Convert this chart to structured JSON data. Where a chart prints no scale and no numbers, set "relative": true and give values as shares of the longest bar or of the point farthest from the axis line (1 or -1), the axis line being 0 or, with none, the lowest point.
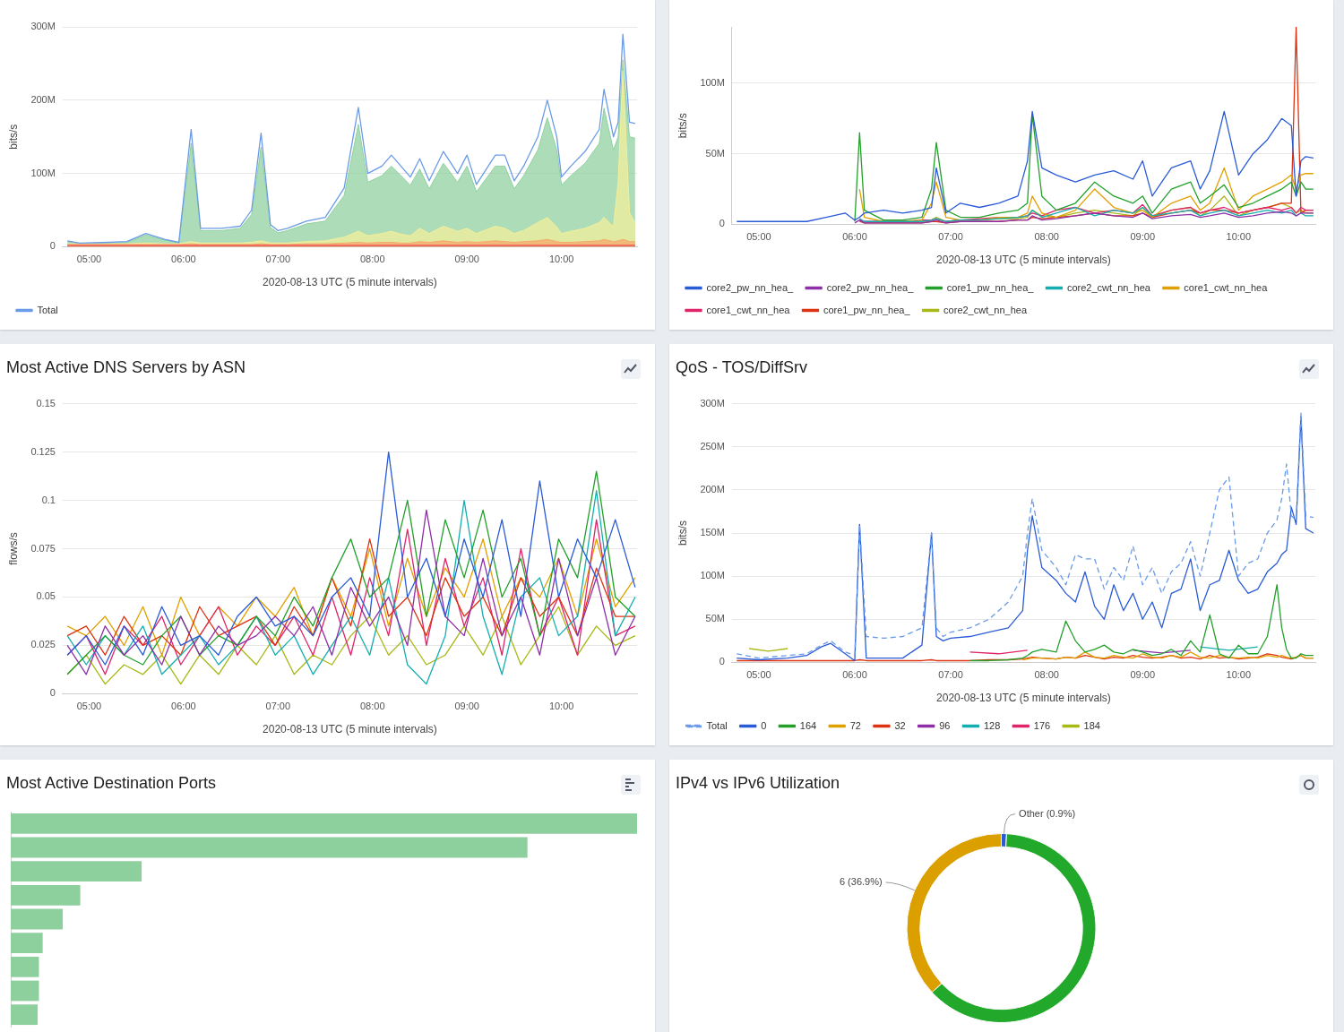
{
  "chart_data": [
    {
      "type": "area",
      "ylabel": "bits/s",
      "xlabel": "2020-08-13 UTC (5 minute intervals)",
      "legend": "bottom",
      "grid": "y",
      "marker": "none",
      "xlim": [
        4.72,
        10.8
      ],
      "xticks": [
        {
          "value": 5,
          "label": "05:00"
        },
        {
          "value": 6,
          "label": "06:00"
        },
        {
          "value": 7,
          "label": "07:00"
        },
        {
          "value": 8,
          "label": "08:00"
        },
        {
          "value": 9,
          "label": "09:00"
        },
        {
          "value": 10,
          "label": "10:00"
        }
      ],
      "ylim": [
        0,
        300
      ],
      "yticks": [
        0,
        {
          "value": 100,
          "label": "100M"
        },
        {
          "value": 200,
          "label": "200M"
        },
        {
          "value": 300,
          "label": "300M"
        }
      ],
      "x": [
        4.77,
        4.9,
        5.2,
        5.4,
        5.6,
        5.8,
        5.95,
        6.08,
        6.18,
        6.4,
        6.6,
        6.72,
        6.82,
        6.92,
        7.0,
        7.1,
        7.3,
        7.5,
        7.7,
        7.85,
        7.95,
        8.1,
        8.2,
        8.3,
        8.4,
        8.5,
        8.6,
        8.75,
        8.9,
        9.0,
        9.1,
        9.3,
        9.4,
        9.5,
        9.6,
        9.75,
        9.85,
        9.95,
        10.0,
        10.1,
        10.25,
        10.4,
        10.45,
        10.55,
        10.6,
        10.65,
        10.72,
        10.78
      ],
      "series": [
        {
          "name": "Total",
          "type": "line",
          "color": "#6a9be8",
          "values": [
            8,
            5,
            6,
            7,
            18,
            10,
            6,
            160,
            25,
            25,
            28,
            50,
            155,
            30,
            22,
            25,
            35,
            40,
            80,
            190,
            100,
            110,
            125,
            110,
            95,
            120,
            90,
            130,
            100,
            125,
            85,
            125,
            125,
            90,
            110,
            150,
            200,
            150,
            95,
            110,
            130,
            160,
            215,
            150,
            170,
            290,
            170,
            168
          ]
        },
        {
          "color": "#ef5a5a",
          "values": [
            2,
            2,
            2,
            2,
            2,
            2,
            2,
            2,
            2,
            2,
            2,
            2,
            2,
            2,
            2,
            2,
            2,
            2,
            2,
            2,
            2,
            2,
            2,
            2,
            2,
            2,
            2,
            2,
            2,
            2,
            2,
            2,
            2,
            2,
            2,
            2,
            2,
            2,
            2,
            2,
            2,
            2,
            2,
            2,
            2,
            2,
            2,
            2
          ]
        },
        {
          "color": "#f7a86a",
          "values": [
            3,
            3,
            3,
            3,
            3,
            3,
            3,
            4,
            3,
            3,
            3,
            3,
            4,
            3,
            3,
            3,
            4,
            4,
            5,
            6,
            5,
            6,
            6,
            5,
            5,
            7,
            6,
            8,
            6,
            7,
            6,
            8,
            7,
            6,
            7,
            8,
            10,
            7,
            6,
            6,
            7,
            8,
            10,
            7,
            8,
            10,
            7,
            7
          ]
        },
        {
          "color": "#f4ef9a",
          "values": [
            4,
            4,
            4,
            4,
            5,
            4,
            4,
            7,
            5,
            5,
            5,
            6,
            8,
            5,
            5,
            5,
            7,
            8,
            13,
            21,
            15,
            18,
            21,
            17,
            15,
            25,
            18,
            28,
            21,
            25,
            18,
            28,
            25,
            18,
            22,
            33,
            40,
            27,
            18,
            21,
            25,
            33,
            40,
            27,
            88,
            240,
            47,
            32
          ]
        },
        {
          "color": "#8fd19e",
          "values": [
            7,
            4,
            5,
            6,
            16,
            9,
            5,
            141,
            22,
            22,
            25,
            44,
            136,
            26,
            19,
            22,
            31,
            35,
            70,
            167,
            88,
            97,
            110,
            97,
            84,
            106,
            79,
            114,
            88,
            110,
            75,
            110,
            110,
            79,
            97,
            132,
            176,
            132,
            84,
            97,
            114,
            141,
            189,
            132,
            150,
            255,
            150,
            148
          ]
        }
      ]
    },
    {
      "type": "line",
      "ylabel": "bits/s",
      "xlabel": "2020-08-13 UTC (5 minute intervals)",
      "legend": "bottom",
      "grid": "y",
      "marker": "none",
      "xlim": [
        4.72,
        10.8
      ],
      "xticks": [
        {
          "value": 5,
          "label": "05:00"
        },
        {
          "value": 6,
          "label": "06:00"
        },
        {
          "value": 7,
          "label": "07:00"
        },
        {
          "value": 8,
          "label": "08:00"
        },
        {
          "value": 9,
          "label": "09:00"
        },
        {
          "value": 10,
          "label": "10:00"
        }
      ],
      "ylim": [
        0,
        140
      ],
      "yticks": [
        0,
        {
          "value": 50,
          "label": "50M"
        },
        {
          "value": 100,
          "label": "100M"
        }
      ],
      "x": [
        4.77,
        5.0,
        5.3,
        5.5,
        5.7,
        5.9,
        6.0,
        6.05,
        6.1,
        6.3,
        6.5,
        6.7,
        6.8,
        6.85,
        6.95,
        7.1,
        7.3,
        7.5,
        7.7,
        7.8,
        7.85,
        7.95,
        8.1,
        8.3,
        8.5,
        8.7,
        8.9,
        9.0,
        9.1,
        9.3,
        9.5,
        9.6,
        9.7,
        9.85,
        10.0,
        10.15,
        10.3,
        10.45,
        10.55,
        10.6,
        10.65,
        10.7,
        10.78
      ],
      "series": [
        {
          "name": "core2_pw_nn_hea_",
          "color": "#2a5bd7",
          "values": [
            2,
            2,
            2,
            2,
            5,
            8,
            3,
            5,
            8,
            10,
            8,
            10,
            12,
            40,
            8,
            15,
            12,
            15,
            20,
            45,
            80,
            40,
            35,
            30,
            35,
            38,
            32,
            45,
            20,
            40,
            45,
            25,
            38,
            80,
            35,
            50,
            60,
            75,
            70,
            20,
            45,
            48,
            47
          ]
        },
        {
          "name": "core2_pw_nn_hea_",
          "color": "#8e2fa8",
          "values": [
            null,
            null,
            null,
            null,
            null,
            null,
            1,
            3,
            1,
            1,
            1,
            1,
            2,
            3,
            1,
            2,
            2,
            2,
            3,
            3,
            6,
            3,
            4,
            6,
            8,
            6,
            5,
            8,
            4,
            6,
            7,
            5,
            6,
            8,
            5,
            6,
            8,
            9,
            8,
            6,
            8,
            8,
            8
          ]
        },
        {
          "name": "core1_pw_nn_hea_",
          "color": "#22a02a",
          "values": [
            null,
            null,
            null,
            null,
            null,
            null,
            2,
            65,
            10,
            3,
            3,
            5,
            25,
            58,
            10,
            5,
            5,
            8,
            10,
            15,
            78,
            20,
            10,
            15,
            30,
            20,
            15,
            20,
            8,
            25,
            30,
            15,
            20,
            28,
            12,
            15,
            20,
            25,
            30,
            20,
            30,
            25,
            25
          ]
        },
        {
          "name": "core2_cwt_nn_hea",
          "color": "#13aeb0",
          "values": [
            null,
            null,
            null,
            null,
            null,
            null,
            null,
            4,
            2,
            2,
            2,
            2,
            3,
            4,
            2,
            3,
            3,
            4,
            5,
            6,
            10,
            5,
            8,
            12,
            6,
            10,
            8,
            12,
            6,
            8,
            10,
            6,
            8,
            10,
            6,
            8,
            10,
            8,
            10,
            6,
            8,
            6,
            6
          ]
        },
        {
          "name": "core1_cwt_nn_hea",
          "color": "#e0a000",
          "values": [
            null,
            null,
            null,
            null,
            null,
            null,
            null,
            25,
            5,
            2,
            2,
            3,
            15,
            30,
            5,
            3,
            3,
            5,
            5,
            8,
            20,
            8,
            5,
            10,
            25,
            12,
            8,
            10,
            5,
            15,
            20,
            10,
            15,
            40,
            10,
            20,
            25,
            30,
            35,
            25,
            35,
            36,
            36
          ]
        },
        {
          "name": "core1_cwt_nn_hea",
          "color": "#e0246a",
          "values": [
            null,
            null,
            null,
            null,
            null,
            null,
            null,
            3,
            2,
            2,
            2,
            3,
            3,
            4,
            2,
            3,
            4,
            5,
            5,
            6,
            8,
            6,
            10,
            12,
            8,
            10,
            8,
            14,
            6,
            10,
            12,
            8,
            10,
            12,
            8,
            10,
            12,
            10,
            12,
            8,
            12,
            10,
            10
          ]
        },
        {
          "name": "core1_pw_nn_hea_",
          "color": "#dd3311",
          "values": [
            null,
            null,
            null,
            null,
            null,
            null,
            null,
            2,
            1,
            1,
            1,
            1,
            2,
            2,
            1,
            2,
            2,
            2,
            3,
            3,
            5,
            4,
            5,
            6,
            8,
            6,
            6,
            8,
            5,
            8,
            10,
            8,
            10,
            10,
            8,
            10,
            12,
            15,
            15,
            140,
            8,
            10,
            10
          ]
        },
        {
          "name": "core2_cwt_nn_hea",
          "color": "#a8b814",
          "values": [
            null,
            null,
            null,
            null,
            null,
            null,
            null,
            null,
            null,
            null,
            null,
            2,
            3,
            5,
            2,
            3,
            3,
            4,
            4,
            5,
            10,
            6,
            5,
            8,
            10,
            8,
            6,
            12,
            5,
            10,
            12,
            6,
            10,
            20,
            6,
            10,
            12,
            15,
            12,
            8,
            10,
            8,
            8
          ]
        }
      ]
    },
    {
      "type": "line",
      "title": "Most Active DNS Servers by ASN",
      "ylabel": "flows/s",
      "xlabel": "2020-08-13 UTC (5 minute intervals)",
      "grid": "y",
      "marker": "none",
      "xlim": [
        4.72,
        10.8
      ],
      "xticks": [
        {
          "value": 5,
          "label": "05:00"
        },
        {
          "value": 6,
          "label": "06:00"
        },
        {
          "value": 7,
          "label": "07:00"
        },
        {
          "value": 8,
          "label": "08:00"
        },
        {
          "value": 9,
          "label": "09:00"
        },
        {
          "value": 10,
          "label": "10:00"
        }
      ],
      "ylim": [
        0,
        0.15
      ],
      "yticks": [
        0,
        0.025,
        0.05,
        0.075,
        0.1,
        0.125,
        0.15
      ],
      "x": [
        4.77,
        4.97,
        5.17,
        5.37,
        5.57,
        5.77,
        5.97,
        6.17,
        6.37,
        6.57,
        6.77,
        6.97,
        7.17,
        7.37,
        7.57,
        7.77,
        7.97,
        8.17,
        8.37,
        8.57,
        8.77,
        8.97,
        9.17,
        9.37,
        9.57,
        9.77,
        9.97,
        10.17,
        10.37,
        10.57,
        10.78
      ],
      "series": [
        {
          "color": "#2a5bd7",
          "values": [
            0.02,
            0.03,
            0.015,
            0.035,
            0.02,
            0.045,
            0.025,
            0.03,
            0.02,
            0.04,
            0.05,
            0.035,
            0.04,
            0.03,
            0.05,
            0.06,
            0.04,
            0.125,
            0.05,
            0.07,
            0.04,
            0.08,
            0.05,
            0.09,
            0.04,
            0.11,
            0.05,
            0.08,
            0.06,
            0.09,
            0.055
          ]
        },
        {
          "color": "#8e2fa8",
          "values": [
            0.025,
            0.01,
            0.035,
            0.02,
            0.03,
            0.015,
            0.04,
            0.02,
            0.035,
            0.025,
            0.03,
            0.04,
            0.03,
            0.045,
            0.02,
            0.055,
            0.035,
            0.05,
            0.025,
            0.095,
            0.04,
            0.03,
            0.07,
            0.03,
            0.05,
            0.02,
            0.07,
            0.03,
            0.06,
            0.02,
            0.04
          ]
        },
        {
          "color": "#22a02a",
          "values": [
            0.01,
            0.02,
            0.03,
            0.02,
            0.015,
            0.03,
            0.04,
            0.02,
            0.03,
            0.025,
            0.04,
            0.03,
            0.05,
            0.035,
            0.06,
            0.08,
            0.05,
            0.06,
            0.1,
            0.04,
            0.09,
            0.06,
            0.095,
            0.05,
            0.07,
            0.03,
            0.08,
            0.06,
            0.115,
            0.05,
            0.04
          ]
        },
        {
          "color": "#13aeb0",
          "values": [
            0.03,
            0.015,
            0.03,
            0.02,
            0.035,
            0.01,
            0.02,
            0.03,
            0.015,
            0.025,
            0.04,
            0.02,
            0.03,
            0.01,
            0.025,
            0.04,
            0.02,
            0.06,
            0.015,
            0.005,
            0.03,
            0.1,
            0.04,
            0.01,
            0.05,
            0.06,
            0.03,
            0.04,
            0.105,
            0.03,
            0.05
          ]
        },
        {
          "color": "#dd3311",
          "values": [
            0.03,
            0.035,
            0.02,
            0.04,
            0.025,
            0.03,
            0.02,
            0.045,
            0.03,
            0.035,
            0.04,
            0.025,
            0.045,
            0.03,
            0.06,
            0.035,
            0.08,
            0.04,
            0.05,
            0.03,
            0.06,
            0.04,
            0.05,
            0.03,
            0.06,
            0.04,
            0.05,
            0.03,
            0.065,
            0.04,
            0.04
          ]
        },
        {
          "color": "#e0246a",
          "values": [
            0.02,
            0.03,
            0.01,
            0.035,
            0.025,
            0.04,
            0.015,
            0.03,
            0.045,
            0.02,
            0.035,
            0.025,
            0.04,
            0.02,
            0.05,
            0.02,
            0.06,
            0.03,
            0.085,
            0.025,
            0.07,
            0.035,
            0.06,
            0.02,
            0.075,
            0.03,
            0.05,
            0.02,
            0.09,
            0.03,
            0.035
          ]
        },
        {
          "color": "#e0a000",
          "values": [
            0.035,
            0.03,
            0.04,
            0.025,
            0.045,
            0.02,
            0.05,
            0.03,
            0.045,
            0.035,
            0.05,
            0.04,
            0.055,
            0.03,
            0.06,
            0.04,
            0.075,
            0.035,
            0.07,
            0.04,
            0.065,
            0.05,
            0.08,
            0.04,
            0.06,
            0.05,
            0.07,
            0.04,
            0.08,
            0.045,
            0.06
          ]
        },
        {
          "color": "#a8b814",
          "values": [
            0.01,
            0.02,
            0.005,
            0.015,
            0.01,
            0.02,
            0.005,
            0.02,
            0.01,
            0.025,
            0.015,
            0.03,
            0.01,
            0.02,
            0.015,
            0.03,
            0.04,
            0.02,
            0.03,
            0.015,
            0.02,
            0.035,
            0.02,
            0.04,
            0.015,
            0.03,
            0.045,
            0.02,
            0.035,
            0.025,
            0.03
          ]
        }
      ]
    },
    {
      "type": "line",
      "title": "QoS - TOS/DiffSrv",
      "ylabel": "bits/s",
      "xlabel": "2020-08-13 UTC (5 minute intervals)",
      "legend": "bottom",
      "grid": "y",
      "marker": "none",
      "xlim": [
        4.72,
        10.8
      ],
      "xticks": [
        {
          "value": 5,
          "label": "05:00"
        },
        {
          "value": 6,
          "label": "06:00"
        },
        {
          "value": 7,
          "label": "07:00"
        },
        {
          "value": 8,
          "label": "08:00"
        },
        {
          "value": 9,
          "label": "09:00"
        },
        {
          "value": 10,
          "label": "10:00"
        }
      ],
      "ylim": [
        0,
        300
      ],
      "yticks": [
        0,
        {
          "value": 50,
          "label": "50M"
        },
        {
          "value": 100,
          "label": "100M"
        },
        {
          "value": 150,
          "label": "150M"
        },
        {
          "value": 200,
          "label": "200M"
        },
        {
          "value": 250,
          "label": "250M"
        },
        {
          "value": 300,
          "label": "300M"
        }
      ],
      "x": [
        4.77,
        5.0,
        5.3,
        5.5,
        5.65,
        5.75,
        5.9,
        6.0,
        6.05,
        6.12,
        6.3,
        6.5,
        6.7,
        6.8,
        6.85,
        6.92,
        7.0,
        7.2,
        7.4,
        7.6,
        7.75,
        7.8,
        7.85,
        7.95,
        8.1,
        8.2,
        8.3,
        8.4,
        8.5,
        8.6,
        8.7,
        8.8,
        8.9,
        9.0,
        9.1,
        9.2,
        9.3,
        9.4,
        9.5,
        9.6,
        9.7,
        9.8,
        9.9,
        10.0,
        10.1,
        10.2,
        10.3,
        10.4,
        10.45,
        10.5,
        10.55,
        10.6,
        10.65,
        10.7,
        10.78
      ],
      "series": [
        {
          "name": "Total",
          "color": "#6a9be8",
          "line_style": "dashed",
          "values": [
            10,
            5,
            8,
            10,
            20,
            25,
            12,
            8,
            160,
            30,
            28,
            30,
            40,
            150,
            40,
            30,
            35,
            40,
            50,
            70,
            100,
            150,
            190,
            130,
            110,
            90,
            125,
            120,
            120,
            85,
            110,
            95,
            135,
            90,
            110,
            80,
            105,
            115,
            140,
            100,
            150,
            200,
            215,
            100,
            115,
            120,
            150,
            165,
            190,
            230,
            170,
            165,
            290,
            170,
            168
          ]
        },
        {
          "name": "0",
          "color": "#2a5bd7",
          "values": [
            5,
            3,
            5,
            8,
            18,
            22,
            10,
            2,
            160,
            5,
            5,
            5,
            20,
            150,
            30,
            25,
            28,
            30,
            35,
            40,
            60,
            130,
            170,
            110,
            95,
            80,
            70,
            105,
            65,
            50,
            90,
            60,
            80,
            50,
            70,
            40,
            80,
            85,
            120,
            60,
            90,
            95,
            130,
            95,
            80,
            85,
            105,
            115,
            125,
            130,
            180,
            160,
            285,
            155,
            150
          ]
        },
        {
          "name": "164",
          "color": "#22a02a",
          "values": [
            null,
            null,
            null,
            null,
            null,
            null,
            null,
            null,
            null,
            null,
            null,
            null,
            null,
            null,
            null,
            null,
            null,
            2,
            2,
            3,
            5,
            8,
            12,
            15,
            12,
            48,
            25,
            12,
            15,
            20,
            12,
            10,
            15,
            12,
            8,
            10,
            15,
            8,
            25,
            12,
            55,
            10,
            5,
            20,
            10,
            10,
            30,
            90,
            40,
            15,
            5,
            5,
            10,
            8,
            8
          ]
        },
        {
          "name": "72",
          "color": "#e0a000",
          "values": [
            null,
            null,
            null,
            null,
            null,
            null,
            null,
            null,
            null,
            null,
            null,
            null,
            null,
            null,
            null,
            null,
            null,
            null,
            null,
            null,
            3,
            4,
            5,
            5,
            4,
            6,
            5,
            12,
            6,
            5,
            8,
            6,
            5,
            10,
            6,
            5,
            8,
            6,
            12,
            6,
            5,
            8,
            6,
            5,
            6,
            5,
            8,
            6,
            8,
            6,
            5,
            6,
            8,
            5,
            5
          ]
        },
        {
          "name": "32",
          "color": "#dd3311",
          "values": [
            2,
            2,
            2,
            2,
            2,
            2,
            2,
            2,
            3,
            2,
            2,
            2,
            2,
            3,
            2,
            2,
            2,
            2,
            3,
            3,
            4,
            5,
            6,
            5,
            4,
            6,
            5,
            8,
            6,
            4,
            6,
            5,
            8,
            6,
            5,
            6,
            8,
            5,
            6,
            4,
            8,
            5,
            6,
            4,
            5,
            6,
            10,
            8,
            6,
            5,
            4,
            6,
            8,
            5,
            5
          ]
        },
        {
          "name": "96",
          "color": "#8e2fa8",
          "x": [
            8.9,
            9.2,
            9.5
          ],
          "values": [
            14,
            11,
            14
          ]
        },
        {
          "name": "128",
          "color": "#13aeb0",
          "x": [
            9.6,
            9.9,
            10.2
          ],
          "values": [
            18,
            14,
            18
          ]
        },
        {
          "name": "176",
          "color": "#e0246a",
          "x": [
            7.2,
            7.5,
            7.8
          ],
          "values": [
            12,
            10,
            14
          ]
        },
        {
          "name": "184",
          "color": "#a8b814",
          "x": [
            4.9,
            5.1,
            5.3
          ],
          "values": [
            16,
            13,
            16
          ]
        }
      ]
    },
    {
      "type": "bar",
      "title": "Most Active Destination Ports",
      "orientation": "horizontal",
      "relative": true,
      "tick_labels": false,
      "color": "#8ecf9e",
      "categories": [
        null,
        null,
        null,
        null,
        null,
        null,
        null,
        null,
        null
      ],
      "values": [
        1,
        0.825,
        0.209,
        0.111,
        0.083,
        0.051,
        0.045,
        0.045,
        0.043
      ]
    },
    {
      "type": "donut",
      "title": "IPv4 vs IPv6 Utilization",
      "categories": [
        "Other",
        null,
        "6"
      ],
      "values": [
        0.9,
        62.2,
        36.9
      ],
      "colors": [
        "#2a5bd7",
        "#22a82a",
        "#dba000"
      ],
      "value_labels": [
        "(0.9%)",
        null,
        "(36.9%)"
      ]
    }
  ]
}
